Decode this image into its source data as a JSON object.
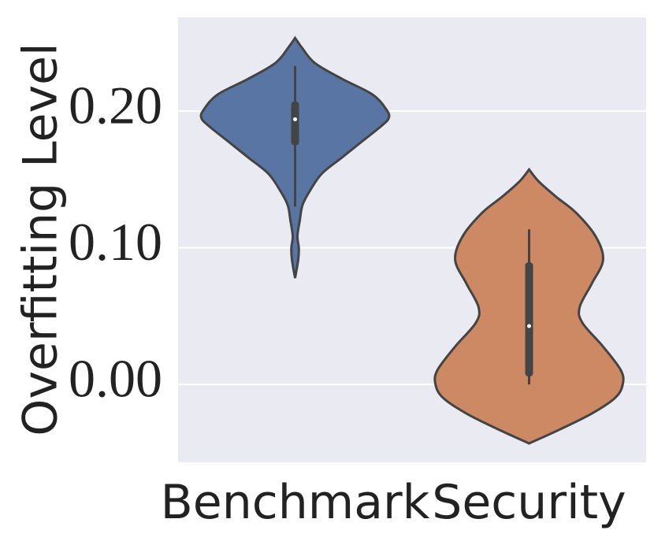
{
  "chart_data": {
    "type": "violin",
    "y_label": "Overfitting Level",
    "categories": [
      "Benchmark",
      "Security"
    ],
    "ylim": [
      -0.057,
      0.2686
    ],
    "yticks": [
      {
        "value": 0.0,
        "label": "0.00"
      },
      {
        "value": 0.1,
        "label": "0.10"
      },
      {
        "value": 0.2,
        "label": "0.20"
      }
    ],
    "grid": true,
    "series": [
      {
        "name": "Benchmark",
        "color": "#5975a4",
        "whisker_low": 0.13,
        "q1": 0.175,
        "median": 0.194,
        "q3": 0.207,
        "whisker_high": 0.233,
        "kde_y": [
          0.2535,
          0.2467,
          0.2352,
          0.2236,
          0.212,
          0.2006,
          0.1948,
          0.189,
          0.1775,
          0.166,
          0.1545,
          0.143,
          0.1314,
          0.1199,
          0.1084,
          0.0997,
          0.091,
          0.0778
        ],
        "kde_density": [
          0,
          0.07,
          0.21,
          0.5,
          0.83,
          0.98,
          1,
          0.92,
          0.71,
          0.5,
          0.29,
          0.17,
          0.08,
          0.05,
          0.025,
          0.04,
          0.033,
          0
        ]
      },
      {
        "name": "Security",
        "color": "#cc8963",
        "whisker_low": 0.0,
        "q1": 0.0058,
        "median": 0.0427,
        "q3": 0.0893,
        "whisker_high": 0.1135,
        "kde_y": [
          0.1573,
          0.1487,
          0.1372,
          0.1257,
          0.1084,
          0.0911,
          0.0738,
          0.0565,
          0.045,
          0.0277,
          0.0104,
          0.0,
          -0.0098,
          -0.0213,
          -0.0329,
          -0.0432
        ],
        "kde_density": [
          0,
          0.1,
          0.29,
          0.5,
          0.71,
          0.79,
          0.67,
          0.54,
          0.57,
          0.79,
          0.98,
          1,
          0.92,
          0.67,
          0.33,
          0
        ]
      }
    ]
  }
}
